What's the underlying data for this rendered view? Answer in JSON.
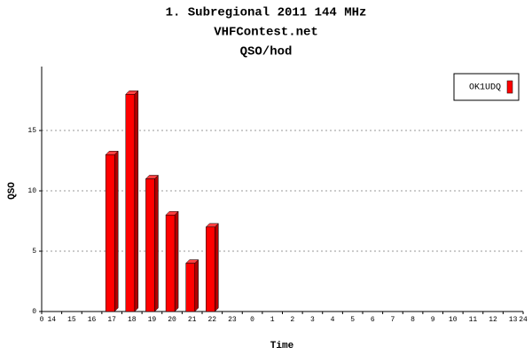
{
  "chart_data": {
    "type": "bar",
    "title": "1. Subregional 2011 144 MHz",
    "subtitle": "VHFContest.net",
    "subtitle2": "QSO/hod",
    "x_label": "Time",
    "y_label": "QSO",
    "categories": [
      "14",
      "15",
      "16",
      "17",
      "18",
      "19",
      "20",
      "21",
      "22",
      "23",
      "0",
      "1",
      "2",
      "3",
      "4",
      "5",
      "6",
      "7",
      "8",
      "9",
      "10",
      "11",
      "12",
      "13"
    ],
    "series": [
      {
        "name": "OK1UDQ",
        "color": "#ff0000",
        "values": [
          0,
          0,
          0,
          13,
          18,
          11,
          8,
          4,
          7,
          0,
          0,
          0,
          0,
          0,
          0,
          0,
          0,
          0,
          0,
          0,
          0,
          0,
          0,
          0
        ]
      }
    ],
    "xlim": [
      0,
      24
    ],
    "xticks": [
      0,
      24
    ],
    "ylim": [
      0,
      20.3
    ],
    "yticks": [
      0,
      5,
      10,
      15
    ],
    "grid": true,
    "legend_position": "top-right"
  }
}
